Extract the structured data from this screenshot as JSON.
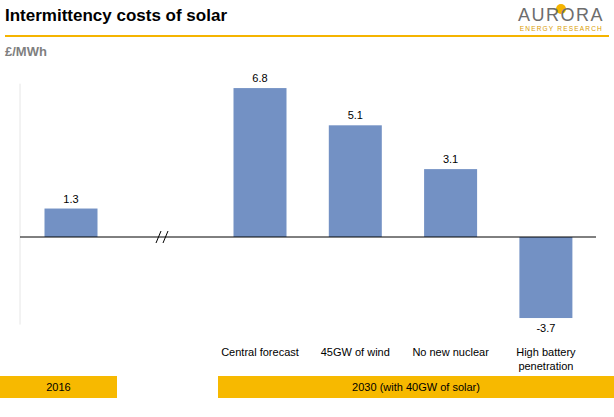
{
  "logo": {
    "name": "AURORA",
    "subtitle": "ENERGY RESEARCH"
  },
  "chart_data": {
    "type": "bar",
    "title": "Intermittency costs of solar",
    "y_label": "£/MWh",
    "categories": [
      null,
      "Central forecast",
      "45GW of wind",
      "No new nuclear",
      "High battery penetration"
    ],
    "values": [
      1.3,
      6.8,
      5.1,
      3.1,
      -3.7
    ],
    "color": "#7391c4",
    "ylim": [
      -4,
      7
    ],
    "yticks": [
      0
    ],
    "grid": false,
    "data_labels": true,
    "tick_labels": "x",
    "period_labels": [
      "2016",
      "2030 (with 40GW of solar)"
    ]
  }
}
